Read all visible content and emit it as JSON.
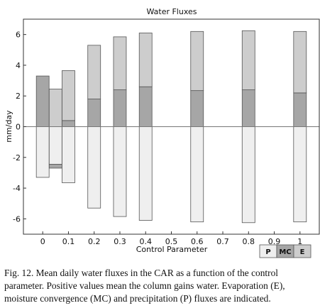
{
  "chart_data": {
    "type": "bar",
    "title": "Water Fluxes",
    "xlabel": "Control Parameter",
    "ylabel": "mm/day",
    "xlim": [
      -0.075,
      1.075
    ],
    "ylim": [
      -7,
      7
    ],
    "x_ticks": [
      0,
      0.1,
      0.2,
      0.3,
      0.4,
      0.5,
      0.6,
      0.7,
      0.8,
      0.9,
      1
    ],
    "x_tick_labels": [
      "0",
      "0.1",
      "0.2",
      "0.3",
      "0.4",
      "0.5",
      "0.6",
      "0.7",
      "0.8",
      "0.9",
      "1"
    ],
    "y_ticks": [
      -6,
      -4,
      -2,
      0,
      2,
      4,
      6
    ],
    "y_tick_labels": [
      "-6",
      "-4",
      "-2",
      "0",
      "2",
      "4",
      "6"
    ],
    "grid": false,
    "stacked": true,
    "x": [
      0,
      0.05,
      0.1,
      0.2,
      0.3,
      0.4,
      0.6,
      0.8,
      1
    ],
    "series": [
      {
        "name": "P",
        "values": [
          -3.3,
          -2.45,
          -3.65,
          -5.3,
          -5.85,
          -6.1,
          -6.2,
          -6.25,
          -6.2
        ]
      },
      {
        "name": "MC",
        "values": [
          3.3,
          -0.25,
          0.4,
          1.8,
          2.4,
          2.6,
          2.35,
          2.4,
          2.2
        ]
      },
      {
        "name": "E",
        "values": [
          0,
          2.45,
          3.25,
          3.5,
          3.45,
          3.5,
          3.85,
          3.85,
          4.0
        ]
      }
    ],
    "colors": {
      "P": "#efefef",
      "MC": "#a6a6a6",
      "E": "#cdcdcd"
    },
    "legend_placement": "bottom-right"
  },
  "caption": "Fig. 12. Mean daily water fluxes in the CAR as a function of the control parameter. Positive values mean the column gains water. Evaporation (E), moisture convergence (MC) and precipitation (P) fluxes are indicated."
}
